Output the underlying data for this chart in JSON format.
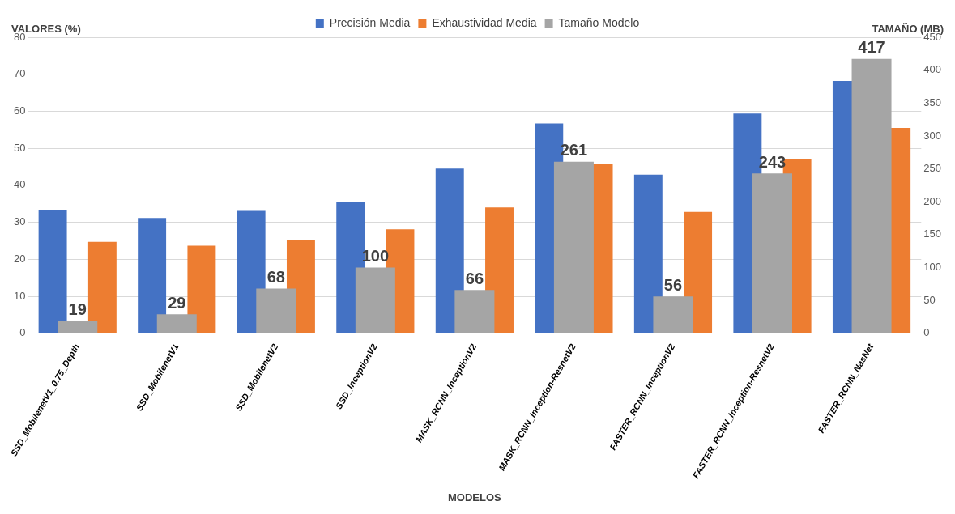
{
  "chart_data": {
    "type": "bar",
    "xlabel": "MODELOS",
    "ylabel": "VALORES (%)",
    "y2label": "TAMAÑO (MB)",
    "categories": [
      "SSD_MobilenetV1_0.75_Depth",
      "SSD_MobilenetV1",
      "SSD_MobilenetV2",
      "SSD_InceptionV2",
      "MASK_RCNN_InceptionV2",
      "MASK_RCNN_Inception-ResnetV2",
      "FASTER_RCNN_InceptionV2",
      "FASTER_RCNN_Inception-ResnetV2",
      "FASTER_RCNN_NasNet"
    ],
    "series": [
      {
        "name": "Precisión Media",
        "color": "#4472c4",
        "values": [
          33.2,
          31.2,
          33.1,
          35.5,
          44.5,
          56.7,
          42.9,
          59.4,
          68.2
        ]
      },
      {
        "name": "Exhaustividad Media",
        "color": "#ed7d31",
        "values": [
          24.7,
          23.7,
          25.3,
          28.1,
          34.0,
          45.9,
          32.8,
          47.0,
          55.5
        ]
      },
      {
        "name": "Tamaño Modelo",
        "color": "#a5a5a5",
        "axis": "y2",
        "values": [
          19,
          29,
          68,
          100,
          66,
          261,
          56,
          243,
          417
        ],
        "value_labels": [
          "19",
          "29",
          "68",
          "100",
          "66",
          "261",
          "56",
          "243",
          "417"
        ]
      }
    ],
    "ylim": [
      0,
      80
    ],
    "yticks": [
      0,
      10,
      20,
      30,
      40,
      50,
      60,
      70,
      80
    ],
    "y2lim": [
      0,
      450
    ],
    "y2ticks": [
      0,
      50,
      100,
      150,
      200,
      250,
      300,
      350,
      400,
      450
    ],
    "grid": "y",
    "legend": "top"
  }
}
